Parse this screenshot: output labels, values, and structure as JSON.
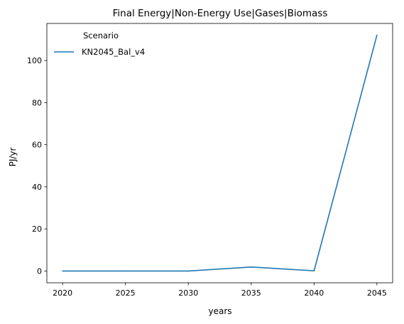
{
  "chart_data": {
    "type": "line",
    "title": "Final Energy|Non-Energy Use|Gases|Biomass",
    "xlabel": "years",
    "ylabel": "PJ/yr",
    "x": [
      2020,
      2025,
      2030,
      2035,
      2040,
      2045
    ],
    "x_ticks": [
      2020,
      2025,
      2030,
      2035,
      2040,
      2045
    ],
    "y_ticks": [
      0,
      20,
      40,
      60,
      80,
      100
    ],
    "xlim": [
      2018.75,
      2046.25
    ],
    "ylim": [
      -5.6,
      117.6
    ],
    "grid": false,
    "legend": {
      "title": "Scenario",
      "placement": "top-left"
    },
    "series": [
      {
        "name": "KN2045_Bal_v4",
        "color": "#1f77b4",
        "values": [
          0,
          0,
          0,
          1.9,
          0.1,
          112
        ]
      }
    ]
  }
}
